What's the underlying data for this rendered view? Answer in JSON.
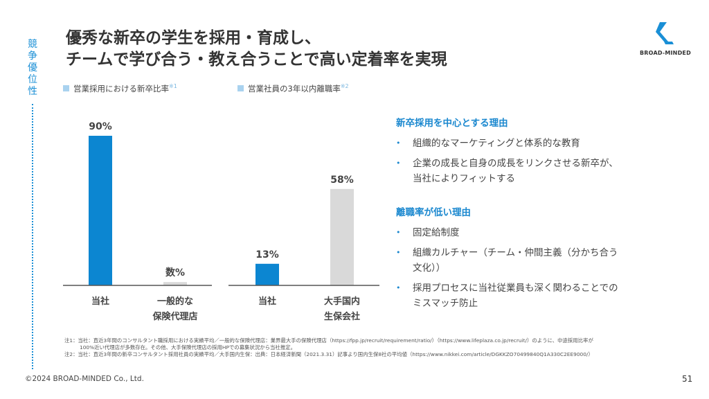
{
  "side_label": [
    "競",
    "争",
    "優",
    "位",
    "性"
  ],
  "title_lines": [
    "優秀な新卒の学生を採用・育成し、",
    "チームで学び合う・教え合うことで高い定着率を実現"
  ],
  "logo": {
    "text": "BROAD-MINDED",
    "color": "#1a8fd6"
  },
  "chart_data": [
    {
      "type": "bar",
      "legend": "営業採用における新卒比率",
      "note_ref": "※1",
      "categories": [
        "当社",
        "一般的な保険代理店"
      ],
      "category_lines": [
        [
          "当社"
        ],
        [
          "一般的な",
          "保険代理店"
        ]
      ],
      "values": [
        90,
        2
      ],
      "value_labels": [
        "90%",
        "数%"
      ],
      "colors": [
        "#0c86d1",
        "#d9d9d9"
      ],
      "ylim": [
        0,
        100
      ]
    },
    {
      "type": "bar",
      "legend": "営業社員の3年以内離職率",
      "note_ref": "※2",
      "categories": [
        "当社",
        "大手国内生保会社"
      ],
      "category_lines": [
        [
          "当社"
        ],
        [
          "大手国内",
          "生保会社"
        ]
      ],
      "values": [
        13,
        58
      ],
      "value_labels": [
        "13%",
        "58%"
      ],
      "colors": [
        "#0c86d1",
        "#d9d9d9"
      ],
      "ylim": [
        0,
        100
      ]
    }
  ],
  "reasons": {
    "heading1": "新卒採用を中心とする理由",
    "items1": [
      "組織的なマーケティングと体系的な教育",
      "企業の成長と自身の成長をリンクさせる新卒が、\n当社によりフィットする"
    ],
    "heading2": "離職率が低い理由",
    "items2": [
      "固定給制度",
      "組織カルチャー（チーム・仲間主義（分かち合う\n文化））",
      "採用プロセスに当社従業員も深く関わることでの\nミスマッチ防止"
    ],
    "bullet": "•"
  },
  "notes": {
    "line1": "注1：当社：直近3年間のコンサルタント職採用における実績平均／一般的な保険代理店：業界最大手の保険代理店（https://fpp.jp/recruit/requirement/ratio/）（https://www.lifeplaza.co.jp/recruit/）のように、中途採用比率が",
    "line2": "100%近い代理店が多数存在。その他、大手保険代理店の採用HPでの募集状況から当社推定。",
    "line3": "注2：当社：直近3年間の新卒コンサルタント採用社員の実績平均／大手国内生保：出典：日本経済新聞（2021.3.31）記事より国内生保8社の平均値（https://www.nikkei.com/article/DGKKZO70499840Q1A330C2EE9000/）"
  },
  "footer": "©2024 BROAD-MINDED Co., Ltd.",
  "page_number": "51"
}
